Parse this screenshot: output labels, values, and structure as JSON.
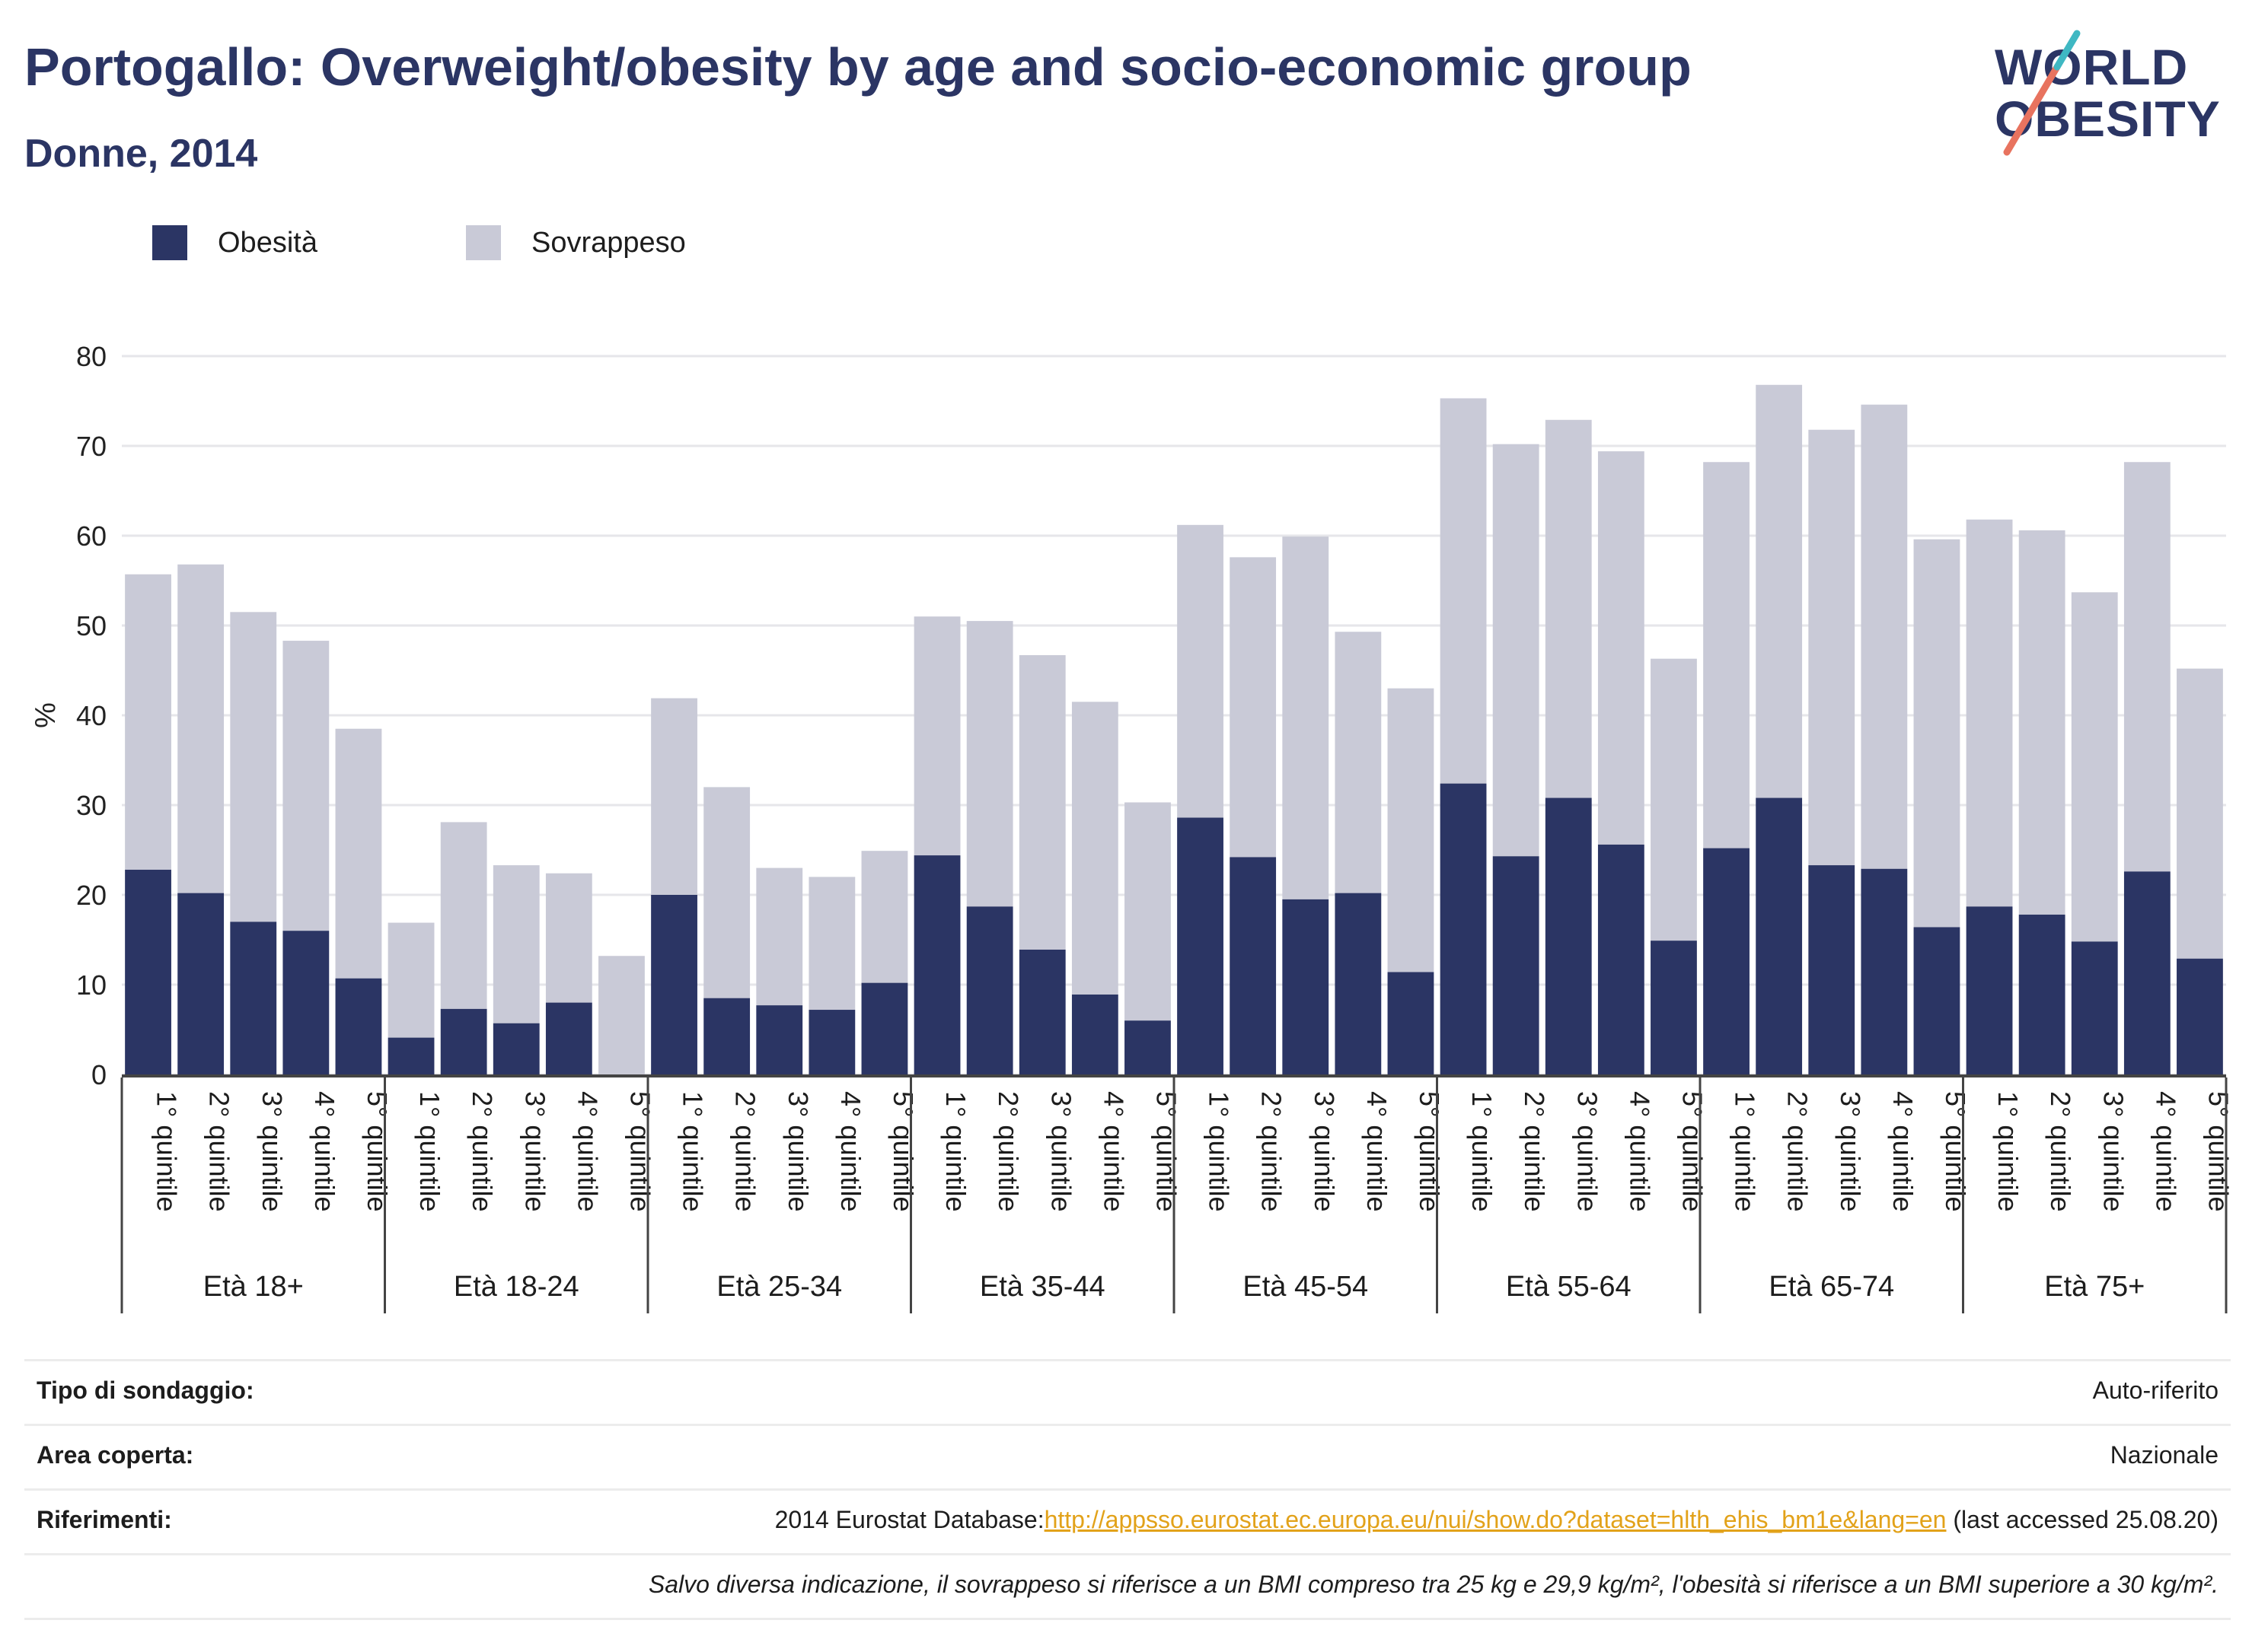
{
  "header": {
    "title": "Portogallo: Overweight/obesity by age and socio-economic group",
    "subtitle": "Donne, 2014"
  },
  "logo": {
    "line1": "WORLD",
    "line2": "OBESITY",
    "accent_colors": [
      "#e8735f",
      "#3fb8c3"
    ]
  },
  "colors": {
    "obesity": "#2b3564",
    "overweight": "#c9cad7"
  },
  "chart_data": {
    "type": "bar",
    "stacked": true,
    "ylabel": "%",
    "ylim": [
      0,
      80
    ],
    "yticks": [
      0,
      10,
      20,
      30,
      40,
      50,
      60,
      70,
      80
    ],
    "grid": true,
    "legend_position": "top-left",
    "legend": [
      "Obesità",
      "Sovrappeso"
    ],
    "groups": [
      "Età 18+",
      "Età 18-24",
      "Età 25-34",
      "Età 35-44",
      "Età 45-54",
      "Età 55-64",
      "Età 65-74",
      "Età 75+"
    ],
    "categories": [
      "1° quintile",
      "2° quintile",
      "3° quintile",
      "4° quintile",
      "5° quintile"
    ],
    "series": [
      {
        "name": "Obesità",
        "values": [
          [
            22.8,
            20.2,
            17.0,
            16.0,
            10.7
          ],
          [
            4.1,
            7.3,
            5.7,
            8.0,
            0.0
          ],
          [
            20.0,
            8.5,
            7.7,
            7.2,
            10.2
          ],
          [
            24.4,
            18.7,
            13.9,
            8.9,
            6.0
          ],
          [
            28.6,
            24.2,
            19.5,
            20.2,
            11.4
          ],
          [
            32.4,
            24.3,
            30.8,
            25.6,
            14.9
          ],
          [
            25.2,
            30.8,
            23.3,
            22.9,
            16.4
          ],
          [
            18.7,
            17.8,
            14.8,
            22.6,
            12.9
          ]
        ]
      },
      {
        "name": "Sovrappeso",
        "values": [
          [
            32.9,
            36.6,
            34.5,
            32.3,
            27.8
          ],
          [
            12.8,
            20.8,
            17.6,
            14.4,
            13.2
          ],
          [
            21.9,
            23.5,
            15.3,
            14.8,
            14.7
          ],
          [
            26.6,
            31.8,
            32.8,
            32.6,
            24.3
          ],
          [
            32.6,
            33.4,
            40.4,
            29.1,
            31.6
          ],
          [
            42.9,
            45.9,
            42.1,
            43.8,
            31.4
          ],
          [
            43.0,
            46.0,
            48.5,
            51.7,
            43.2
          ],
          [
            43.1,
            42.8,
            38.9,
            45.6,
            32.3
          ]
        ]
      }
    ]
  },
  "info": {
    "survey_type_label": "Tipo di sondaggio:",
    "survey_type_value": "Auto-riferito",
    "area_label": "Area coperta:",
    "area_value": "Nazionale",
    "refs_label": "Riferimenti:",
    "refs_prefix": "2014 Eurostat Database:",
    "refs_link": "http://appsso.eurostat.ec.europa.eu/nui/show.do?dataset=hlth_ehis_bm1e&lang=en",
    "refs_suffix": " (last accessed 25.08.20)",
    "note": "Salvo diversa indicazione, il sovrappeso si riferisce a un BMI compreso tra 25 kg e 29,9 kg/m², l'obesità si riferisce a un BMI superiore a 30 kg/m²."
  }
}
